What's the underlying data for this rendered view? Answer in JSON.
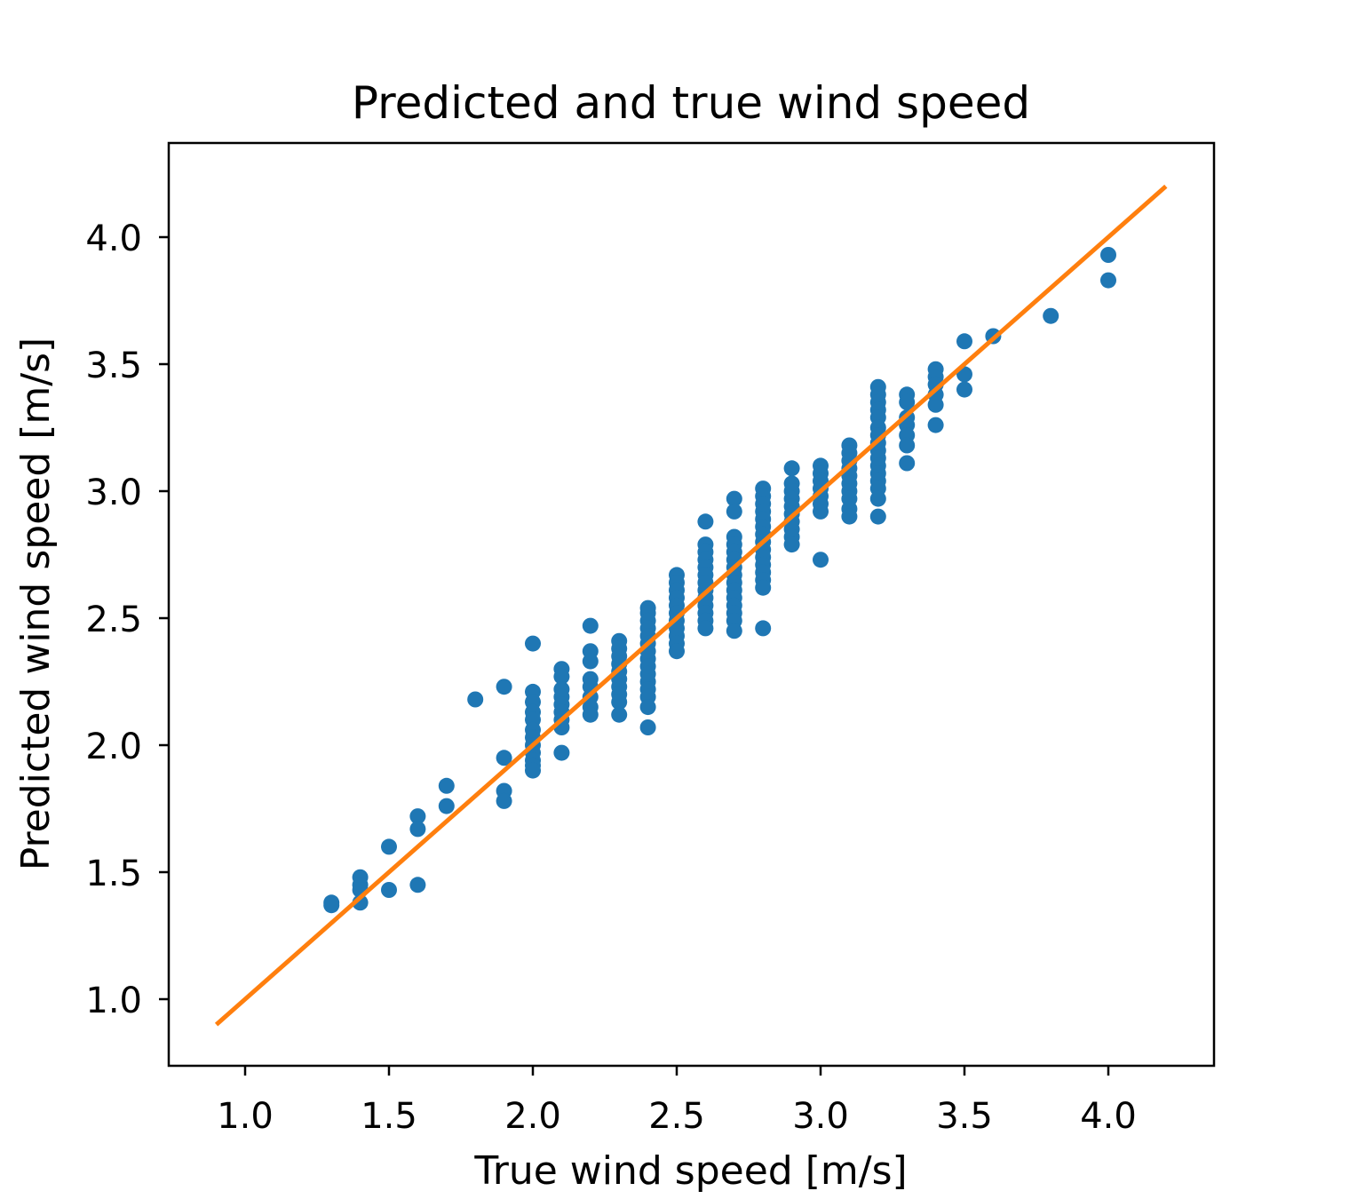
{
  "chart_data": {
    "type": "scatter",
    "title": "Predicted and true wind speed",
    "xlabel": "True wind speed [m/s]",
    "ylabel": "Predicted wind speed [m/s]",
    "xlim": [
      0.74,
      4.37
    ],
    "ylim": [
      0.74,
      4.37
    ],
    "xticks": [
      "1.0",
      "1.5",
      "2.0",
      "2.5",
      "3.0",
      "3.5",
      "4.0"
    ],
    "yticks": [
      "1.0",
      "1.5",
      "2.0",
      "2.5",
      "3.0",
      "3.5",
      "4.0"
    ],
    "grid": false,
    "legend": false,
    "colors": {
      "points": "#1f77b4",
      "line": "#ff7f0e",
      "axes": "#000000"
    },
    "series": [
      {
        "kind": "scatter",
        "points": [
          [
            1.3,
            1.38
          ],
          [
            1.3,
            1.37
          ],
          [
            1.4,
            1.48
          ],
          [
            1.4,
            1.45
          ],
          [
            1.4,
            1.43
          ],
          [
            1.4,
            1.38
          ],
          [
            1.5,
            1.6
          ],
          [
            1.5,
            1.43
          ],
          [
            1.6,
            1.72
          ],
          [
            1.6,
            1.67
          ],
          [
            1.6,
            1.45
          ],
          [
            1.7,
            1.84
          ],
          [
            1.7,
            1.76
          ],
          [
            1.8,
            2.18
          ],
          [
            1.9,
            2.23
          ],
          [
            1.9,
            1.95
          ],
          [
            1.9,
            1.82
          ],
          [
            1.9,
            1.78
          ],
          [
            2.0,
            2.4
          ],
          [
            2.0,
            2.21
          ],
          [
            2.0,
            2.17
          ],
          [
            2.0,
            2.13
          ],
          [
            2.0,
            2.1
          ],
          [
            2.0,
            2.06
          ],
          [
            2.0,
            2.03
          ],
          [
            2.0,
            2.0
          ],
          [
            2.0,
            1.97
          ],
          [
            2.0,
            1.94
          ],
          [
            2.0,
            1.92
          ],
          [
            2.0,
            1.9
          ],
          [
            2.1,
            2.3
          ],
          [
            2.1,
            2.27
          ],
          [
            2.1,
            2.22
          ],
          [
            2.1,
            2.19
          ],
          [
            2.1,
            2.16
          ],
          [
            2.1,
            2.13
          ],
          [
            2.1,
            2.1
          ],
          [
            2.1,
            2.07
          ],
          [
            2.1,
            1.97
          ],
          [
            2.2,
            2.47
          ],
          [
            2.2,
            2.37
          ],
          [
            2.2,
            2.33
          ],
          [
            2.2,
            2.26
          ],
          [
            2.2,
            2.23
          ],
          [
            2.2,
            2.19
          ],
          [
            2.2,
            2.15
          ],
          [
            2.2,
            2.12
          ],
          [
            2.3,
            2.41
          ],
          [
            2.3,
            2.38
          ],
          [
            2.3,
            2.35
          ],
          [
            2.3,
            2.32
          ],
          [
            2.3,
            2.29
          ],
          [
            2.3,
            2.26
          ],
          [
            2.3,
            2.23
          ],
          [
            2.3,
            2.2
          ],
          [
            2.3,
            2.17
          ],
          [
            2.3,
            2.12
          ],
          [
            2.4,
            2.54
          ],
          [
            2.4,
            2.52
          ],
          [
            2.4,
            2.49
          ],
          [
            2.4,
            2.46
          ],
          [
            2.4,
            2.43
          ],
          [
            2.4,
            2.4
          ],
          [
            2.4,
            2.37
          ],
          [
            2.4,
            2.34
          ],
          [
            2.4,
            2.31
          ],
          [
            2.4,
            2.28
          ],
          [
            2.4,
            2.25
          ],
          [
            2.4,
            2.22
          ],
          [
            2.4,
            2.19
          ],
          [
            2.4,
            2.15
          ],
          [
            2.4,
            2.07
          ],
          [
            2.5,
            2.67
          ],
          [
            2.5,
            2.64
          ],
          [
            2.5,
            2.61
          ],
          [
            2.5,
            2.58
          ],
          [
            2.5,
            2.55
          ],
          [
            2.5,
            2.52
          ],
          [
            2.5,
            2.49
          ],
          [
            2.5,
            2.46
          ],
          [
            2.5,
            2.43
          ],
          [
            2.5,
            2.4
          ],
          [
            2.5,
            2.37
          ],
          [
            2.6,
            2.88
          ],
          [
            2.6,
            2.79
          ],
          [
            2.6,
            2.76
          ],
          [
            2.6,
            2.73
          ],
          [
            2.6,
            2.7
          ],
          [
            2.6,
            2.67
          ],
          [
            2.6,
            2.64
          ],
          [
            2.6,
            2.61
          ],
          [
            2.6,
            2.58
          ],
          [
            2.6,
            2.55
          ],
          [
            2.6,
            2.52
          ],
          [
            2.6,
            2.49
          ],
          [
            2.6,
            2.46
          ],
          [
            2.7,
            2.97
          ],
          [
            2.7,
            2.92
          ],
          [
            2.7,
            2.82
          ],
          [
            2.7,
            2.79
          ],
          [
            2.7,
            2.76
          ],
          [
            2.7,
            2.73
          ],
          [
            2.7,
            2.7
          ],
          [
            2.7,
            2.67
          ],
          [
            2.7,
            2.64
          ],
          [
            2.7,
            2.61
          ],
          [
            2.7,
            2.58
          ],
          [
            2.7,
            2.55
          ],
          [
            2.7,
            2.52
          ],
          [
            2.7,
            2.49
          ],
          [
            2.7,
            2.45
          ],
          [
            2.8,
            3.01
          ],
          [
            2.8,
            2.98
          ],
          [
            2.8,
            2.95
          ],
          [
            2.8,
            2.92
          ],
          [
            2.8,
            2.89
          ],
          [
            2.8,
            2.86
          ],
          [
            2.8,
            2.83
          ],
          [
            2.8,
            2.8
          ],
          [
            2.8,
            2.77
          ],
          [
            2.8,
            2.74
          ],
          [
            2.8,
            2.71
          ],
          [
            2.8,
            2.68
          ],
          [
            2.8,
            2.65
          ],
          [
            2.8,
            2.62
          ],
          [
            2.8,
            2.46
          ],
          [
            2.9,
            3.09
          ],
          [
            2.9,
            3.03
          ],
          [
            2.9,
            3.0
          ],
          [
            2.9,
            2.97
          ],
          [
            2.9,
            2.94
          ],
          [
            2.9,
            2.91
          ],
          [
            2.9,
            2.88
          ],
          [
            2.9,
            2.85
          ],
          [
            2.9,
            2.82
          ],
          [
            2.9,
            2.79
          ],
          [
            3.0,
            3.1
          ],
          [
            3.0,
            3.07
          ],
          [
            3.0,
            3.04
          ],
          [
            3.0,
            3.01
          ],
          [
            3.0,
            2.98
          ],
          [
            3.0,
            2.95
          ],
          [
            3.0,
            2.92
          ],
          [
            3.0,
            2.73
          ],
          [
            3.1,
            3.18
          ],
          [
            3.1,
            3.15
          ],
          [
            3.1,
            3.12
          ],
          [
            3.1,
            3.09
          ],
          [
            3.1,
            3.06
          ],
          [
            3.1,
            3.03
          ],
          [
            3.1,
            3.0
          ],
          [
            3.1,
            2.97
          ],
          [
            3.1,
            2.93
          ],
          [
            3.1,
            2.9
          ],
          [
            3.2,
            3.41
          ],
          [
            3.2,
            3.38
          ],
          [
            3.2,
            3.35
          ],
          [
            3.2,
            3.32
          ],
          [
            3.2,
            3.29
          ],
          [
            3.2,
            3.25
          ],
          [
            3.2,
            3.22
          ],
          [
            3.2,
            3.19
          ],
          [
            3.2,
            3.16
          ],
          [
            3.2,
            3.13
          ],
          [
            3.2,
            3.1
          ],
          [
            3.2,
            3.07
          ],
          [
            3.2,
            3.04
          ],
          [
            3.2,
            3.01
          ],
          [
            3.2,
            2.97
          ],
          [
            3.2,
            2.9
          ],
          [
            3.3,
            3.38
          ],
          [
            3.3,
            3.35
          ],
          [
            3.3,
            3.29
          ],
          [
            3.3,
            3.26
          ],
          [
            3.3,
            3.22
          ],
          [
            3.3,
            3.18
          ],
          [
            3.3,
            3.11
          ],
          [
            3.4,
            3.48
          ],
          [
            3.4,
            3.45
          ],
          [
            3.4,
            3.42
          ],
          [
            3.4,
            3.38
          ],
          [
            3.4,
            3.34
          ],
          [
            3.4,
            3.26
          ],
          [
            3.5,
            3.59
          ],
          [
            3.5,
            3.46
          ],
          [
            3.5,
            3.4
          ],
          [
            3.6,
            3.61
          ],
          [
            3.8,
            3.69
          ],
          [
            4.0,
            3.93
          ],
          [
            4.0,
            3.83
          ]
        ]
      },
      {
        "kind": "line",
        "x": [
          0.9,
          4.2
        ],
        "y": [
          0.9,
          4.2
        ]
      }
    ]
  }
}
